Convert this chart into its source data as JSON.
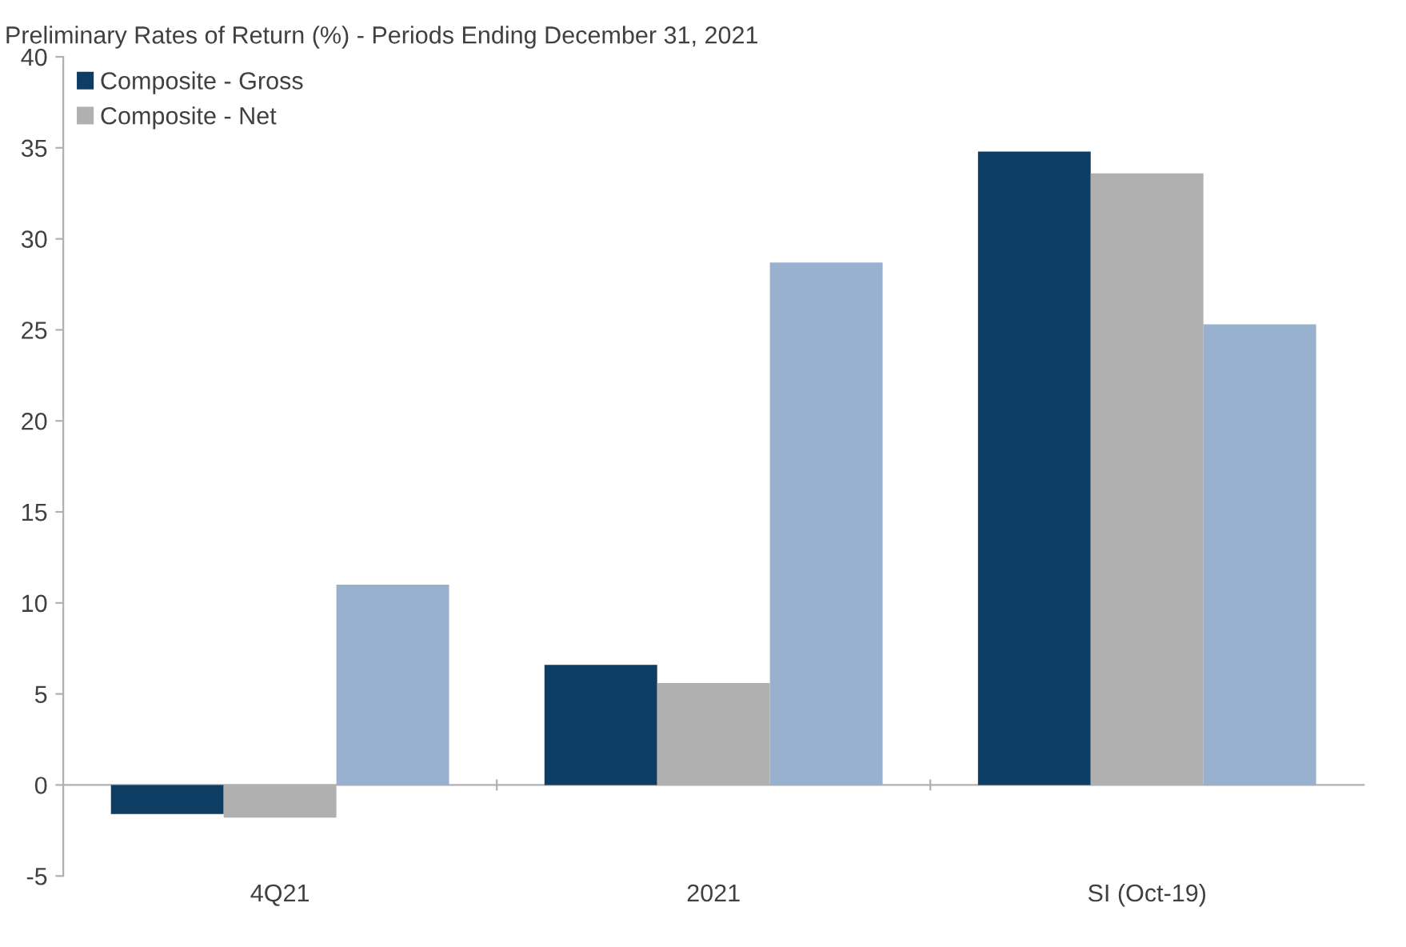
{
  "chart_data": {
    "type": "bar",
    "title": "Preliminary Rates of Return (%) - Periods Ending December 31, 2021",
    "categories": [
      "4Q21",
      "2021",
      "SI (Oct-19)"
    ],
    "series": [
      {
        "name": "Composite - Gross",
        "color": "#0e3d63",
        "values": [
          -1.6,
          6.6,
          34.8
        ]
      },
      {
        "name": "Composite - Net",
        "color": "#b0b0b0",
        "values": [
          -1.8,
          5.6,
          33.6
        ]
      },
      {
        "color": "#98b1cf",
        "values": [
          11.0,
          28.7,
          25.3
        ]
      }
    ],
    "ylim": [
      -5,
      40
    ],
    "yticks": [
      -5,
      0,
      5,
      10,
      15,
      20,
      25,
      30,
      35,
      40
    ],
    "legend": "top left"
  }
}
